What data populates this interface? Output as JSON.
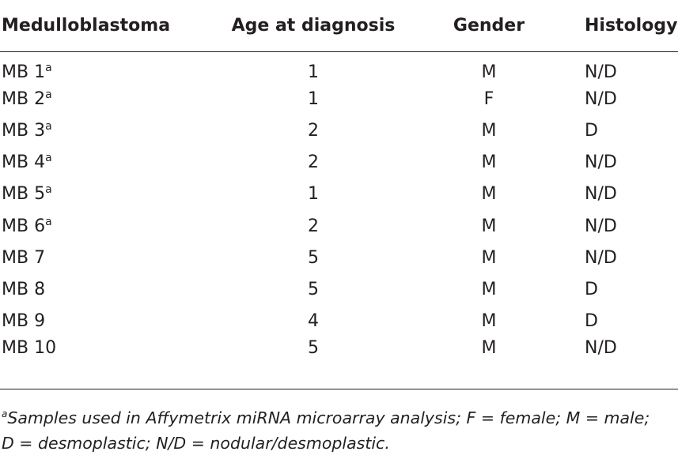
{
  "table": {
    "headers": [
      "Medulloblastoma",
      "Age at diagnosis",
      "Gender",
      "Histology"
    ],
    "rows": [
      {
        "name": "MB 1",
        "mark": "a",
        "age": "1",
        "gender": "M",
        "histology": "N/D"
      },
      {
        "name": "MB 2",
        "mark": "a",
        "age": "1",
        "gender": "F",
        "histology": "N/D"
      },
      {
        "name": "MB 3",
        "mark": "a",
        "age": "2",
        "gender": "M",
        "histology": "D"
      },
      {
        "name": "MB 4",
        "mark": "a",
        "age": "2",
        "gender": "M",
        "histology": "N/D"
      },
      {
        "name": "MB 5",
        "mark": "a",
        "age": "1",
        "gender": "M",
        "histology": "N/D"
      },
      {
        "name": "MB 6",
        "mark": "a",
        "age": "2",
        "gender": "M",
        "histology": "N/D"
      },
      {
        "name": "MB 7",
        "mark": "",
        "age": "5",
        "gender": "M",
        "histology": "N/D"
      },
      {
        "name": "MB 8",
        "mark": "",
        "age": "5",
        "gender": "M",
        "histology": "D"
      },
      {
        "name": "MB 9",
        "mark": "",
        "age": "4",
        "gender": "M",
        "histology": "D"
      },
      {
        "name": "MB 10",
        "mark": "",
        "age": "5",
        "gender": "M",
        "histology": "N/D"
      }
    ]
  },
  "footnote": {
    "mark": "a",
    "line1": "Samples used in Affymetrix miRNA microarray analysis; F = female; M = male;",
    "line2": "D = desmoplastic; N/D = nodular/desmoplastic."
  }
}
